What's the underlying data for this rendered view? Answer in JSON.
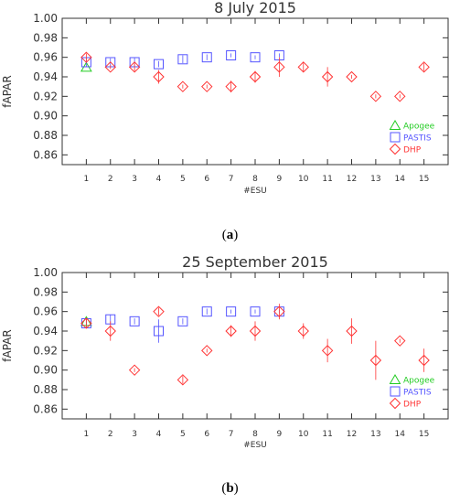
{
  "captions": {
    "a_open": "(",
    "a_letter": "a",
    "a_close": ")",
    "b_open": "(",
    "b_letter": "b",
    "b_close": ")"
  },
  "colors": {
    "apogee": "#22cc22",
    "pastis": "#5555ff",
    "dhp": "#ff3333",
    "axis": "#333333",
    "text": "#333333"
  },
  "chart_data": [
    {
      "type": "scatter",
      "title": "8 July 2015",
      "xlabel": "#ESU",
      "ylabel": "fAPAR",
      "xlim": [
        0,
        16
      ],
      "ylim": [
        0.85,
        1.0
      ],
      "xticks": [
        1,
        2,
        3,
        4,
        5,
        6,
        7,
        8,
        9,
        10,
        11,
        12,
        13,
        14,
        15
      ],
      "yticks": [
        "0.86",
        "0.88",
        "0.90",
        "0.92",
        "0.94",
        "0.96",
        "0.98",
        "1.00"
      ],
      "legend_position": "bottom-right",
      "series": [
        {
          "name": "Apogee",
          "marker": "triangle",
          "color_key": "apogee",
          "points": [
            {
              "x": 1,
              "y": 0.95,
              "err": 0.0
            }
          ]
        },
        {
          "name": "PASTIS",
          "marker": "square",
          "color_key": "pastis",
          "points": [
            {
              "x": 1,
              "y": 0.955,
              "err": 0.005
            },
            {
              "x": 2,
              "y": 0.955,
              "err": 0.004
            },
            {
              "x": 3,
              "y": 0.955,
              "err": 0.005
            },
            {
              "x": 4,
              "y": 0.953,
              "err": 0.003
            },
            {
              "x": 5,
              "y": 0.958,
              "err": 0.004
            },
            {
              "x": 6,
              "y": 0.96,
              "err": 0.003
            },
            {
              "x": 7,
              "y": 0.962,
              "err": 0.002
            },
            {
              "x": 8,
              "y": 0.96,
              "err": 0.002
            },
            {
              "x": 9,
              "y": 0.962,
              "err": 0.002
            }
          ]
        },
        {
          "name": "DHP",
          "marker": "diamond",
          "color_key": "dhp",
          "points": [
            {
              "x": 1,
              "y": 0.96,
              "err": 0.004
            },
            {
              "x": 2,
              "y": 0.95,
              "err": 0.002
            },
            {
              "x": 3,
              "y": 0.95,
              "err": 0.004
            },
            {
              "x": 4,
              "y": 0.94,
              "err": 0.007
            },
            {
              "x": 5,
              "y": 0.93,
              "err": 0.002
            },
            {
              "x": 6,
              "y": 0.93,
              "err": 0.002
            },
            {
              "x": 7,
              "y": 0.93,
              "err": 0.006
            },
            {
              "x": 8,
              "y": 0.94,
              "err": 0.006
            },
            {
              "x": 9,
              "y": 0.95,
              "err": 0.01
            },
            {
              "x": 10,
              "y": 0.95,
              "err": 0.005
            },
            {
              "x": 11,
              "y": 0.94,
              "err": 0.01
            },
            {
              "x": 12,
              "y": 0.94,
              "err": 0.002
            },
            {
              "x": 13,
              "y": 0.92,
              "err": 0.002
            },
            {
              "x": 14,
              "y": 0.92,
              "err": 0.002
            },
            {
              "x": 15,
              "y": 0.95,
              "err": 0.004
            }
          ]
        }
      ]
    },
    {
      "type": "scatter",
      "title": "25 September 2015",
      "xlabel": "#ESU",
      "ylabel": "fAPAR",
      "xlim": [
        0,
        16
      ],
      "ylim": [
        0.85,
        1.0
      ],
      "xticks": [
        1,
        2,
        3,
        4,
        5,
        6,
        7,
        8,
        9,
        10,
        11,
        12,
        13,
        14,
        15
      ],
      "yticks": [
        "0.86",
        "0.88",
        "0.90",
        "0.92",
        "0.94",
        "0.96",
        "0.98",
        "1.00"
      ],
      "legend_position": "bottom-right",
      "series": [
        {
          "name": "Apogee",
          "marker": "triangle",
          "color_key": "apogee",
          "points": [
            {
              "x": 1,
              "y": 0.95,
              "err": 0.004
            }
          ]
        },
        {
          "name": "PASTIS",
          "marker": "square",
          "color_key": "pastis",
          "points": [
            {
              "x": 1,
              "y": 0.948,
              "err": 0.004
            },
            {
              "x": 2,
              "y": 0.952,
              "err": 0.005
            },
            {
              "x": 3,
              "y": 0.95,
              "err": 0.003
            },
            {
              "x": 4,
              "y": 0.94,
              "err": 0.012
            },
            {
              "x": 5,
              "y": 0.95,
              "err": 0.003
            },
            {
              "x": 6,
              "y": 0.96,
              "err": 0.003
            },
            {
              "x": 7,
              "y": 0.96,
              "err": 0.002
            },
            {
              "x": 8,
              "y": 0.96,
              "err": 0.002
            },
            {
              "x": 9,
              "y": 0.96,
              "err": 0.002
            }
          ]
        },
        {
          "name": "DHP",
          "marker": "diamond",
          "color_key": "dhp",
          "points": [
            {
              "x": 1,
              "y": 0.948,
              "err": 0.005
            },
            {
              "x": 2,
              "y": 0.94,
              "err": 0.01
            },
            {
              "x": 3,
              "y": 0.9,
              "err": 0.002
            },
            {
              "x": 4,
              "y": 0.96,
              "err": 0.004
            },
            {
              "x": 5,
              "y": 0.89,
              "err": 0.004
            },
            {
              "x": 6,
              "y": 0.92,
              "err": 0.002
            },
            {
              "x": 7,
              "y": 0.94,
              "err": 0.006
            },
            {
              "x": 8,
              "y": 0.94,
              "err": 0.01
            },
            {
              "x": 9,
              "y": 0.96,
              "err": 0.008
            },
            {
              "x": 10,
              "y": 0.94,
              "err": 0.008
            },
            {
              "x": 11,
              "y": 0.92,
              "err": 0.012
            },
            {
              "x": 12,
              "y": 0.94,
              "err": 0.013
            },
            {
              "x": 13,
              "y": 0.91,
              "err": 0.02
            },
            {
              "x": 14,
              "y": 0.93,
              "err": 0.002
            },
            {
              "x": 15,
              "y": 0.91,
              "err": 0.012
            }
          ]
        }
      ]
    }
  ]
}
